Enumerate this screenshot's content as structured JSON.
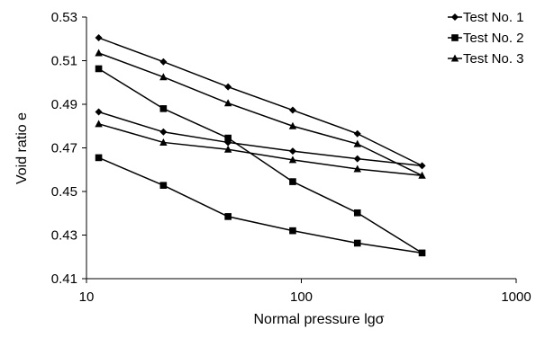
{
  "chart_data": {
    "type": "line",
    "xlabel": "Normal pressure lgσ",
    "ylabel": "Void ratio e",
    "x_scale": "log",
    "xlim": [
      10,
      1000
    ],
    "ylim": [
      0.41,
      0.53
    ],
    "x_ticks": [
      10,
      100,
      1000
    ],
    "x_tick_labels": [
      "10",
      "100",
      "1000"
    ],
    "y_ticks": [
      0.41,
      0.43,
      0.45,
      0.47,
      0.49,
      0.51,
      0.53
    ],
    "y_tick_labels": [
      "0.41",
      "0.43",
      "0.45",
      "0.47",
      "0.49",
      "0.51",
      "0.53"
    ],
    "grid": false,
    "legend_position": "top-right",
    "series": [
      {
        "name": "Test No. 1",
        "marker": "diamond",
        "color": "#000000",
        "points": [
          [
            11.4,
            0.5205
          ],
          [
            22.8,
            0.5095
          ],
          [
            45.6,
            0.498
          ],
          [
            91.2,
            0.4873
          ],
          [
            182.4,
            0.4765
          ],
          [
            364.8,
            0.4618
          ],
          [
            182.4,
            0.465
          ],
          [
            91.2,
            0.4685
          ],
          [
            45.6,
            0.4725
          ],
          [
            22.8,
            0.4773
          ],
          [
            11.4,
            0.4865
          ]
        ]
      },
      {
        "name": "Test No. 2",
        "marker": "square",
        "color": "#000000",
        "points": [
          [
            11.4,
            0.5063
          ],
          [
            22.8,
            0.488
          ],
          [
            45.6,
            0.4745
          ],
          [
            91.2,
            0.4545
          ],
          [
            182.4,
            0.4402
          ],
          [
            364.8,
            0.4218
          ],
          [
            182.4,
            0.4263
          ],
          [
            91.2,
            0.432
          ],
          [
            45.6,
            0.4385
          ],
          [
            22.8,
            0.4528
          ],
          [
            11.4,
            0.4655
          ]
        ]
      },
      {
        "name": "Test No. 3",
        "marker": "triangle",
        "color": "#000000",
        "points": [
          [
            11.4,
            0.5135
          ],
          [
            22.8,
            0.5025
          ],
          [
            45.6,
            0.4905
          ],
          [
            91.2,
            0.48
          ],
          [
            182.4,
            0.4718
          ],
          [
            364.8,
            0.4573
          ],
          [
            182.4,
            0.4603
          ],
          [
            91.2,
            0.4645
          ],
          [
            45.6,
            0.4693
          ],
          [
            22.8,
            0.4725
          ],
          [
            11.4,
            0.481
          ]
        ]
      }
    ]
  }
}
